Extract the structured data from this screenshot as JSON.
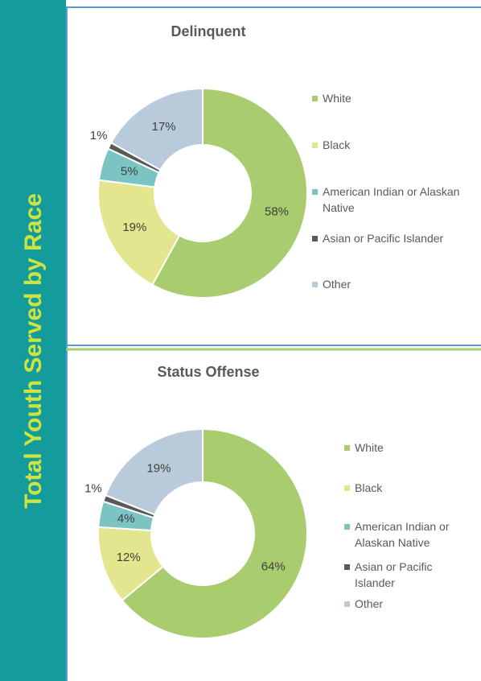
{
  "banner": "Total Youth Served by Race",
  "chart_data": [
    {
      "type": "donut",
      "title": "Delinquent",
      "categories": [
        "White",
        "Black",
        "American Indian or Alaskan Native",
        "Asian or Pacific Islander",
        "Other"
      ],
      "values": [
        58,
        19,
        5,
        1,
        17
      ],
      "value_labels": [
        "58%",
        "19%",
        "5%",
        "1%",
        "17%"
      ],
      "colors": [
        "#a9cc6e",
        "#e3e68e",
        "#7cc3c3",
        "#595959",
        "#b9cadb"
      ],
      "legend": "right"
    },
    {
      "type": "donut",
      "title": "Status Offense",
      "categories": [
        "White",
        "Black",
        "American Indian or Alaskan Native",
        "Asian or Pacific Islander",
        "Other"
      ],
      "values": [
        64,
        12,
        4,
        1,
        19
      ],
      "value_labels": [
        "64%",
        "12%",
        "4%",
        "1%",
        "19%"
      ],
      "colors": [
        "#a9cc6e",
        "#e3e68e",
        "#7cc3c3",
        "#595959",
        "#b9cadb"
      ],
      "legend": "right"
    }
  ]
}
